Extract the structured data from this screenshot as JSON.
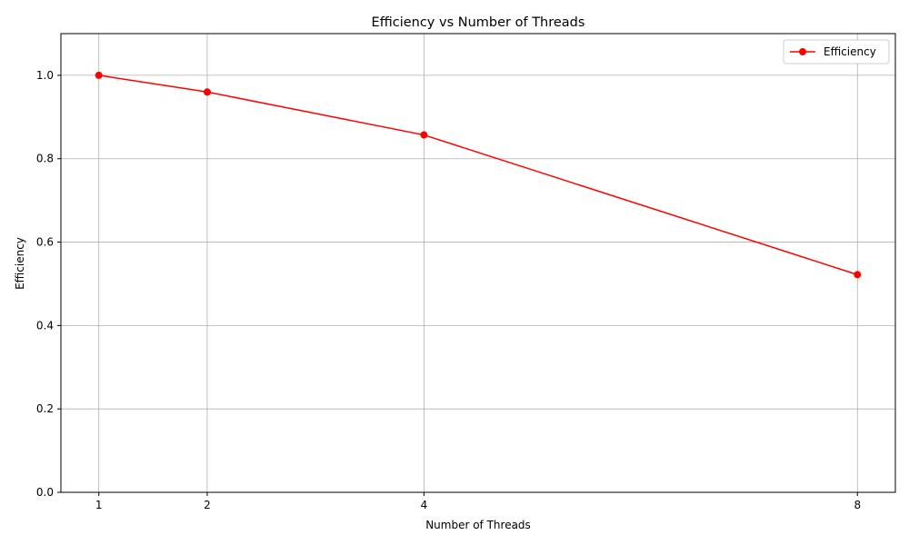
{
  "chart_data": {
    "type": "line",
    "title": "Efficiency vs Number of Threads",
    "xlabel": "Number of Threads",
    "ylabel": "Efficiency",
    "x": [
      1,
      2,
      4,
      8
    ],
    "x_ticks": [
      1,
      2,
      4,
      8
    ],
    "x_tick_labels": [
      "1",
      "2",
      "4",
      "8"
    ],
    "xlim": [
      0.65,
      8.35
    ],
    "ylim": [
      0.0,
      1.1
    ],
    "y_ticks": [
      0.0,
      0.2,
      0.4,
      0.6,
      0.8,
      1.0
    ],
    "y_tick_labels": [
      "0.0",
      "0.2",
      "0.4",
      "0.6",
      "0.8",
      "1.0"
    ],
    "series": [
      {
        "name": "Efficiency",
        "values": [
          1.0,
          0.96,
          0.857,
          0.522
        ],
        "color": "#ff0000",
        "marker": "circle"
      }
    ],
    "grid": true,
    "legend_position": "top-right"
  }
}
